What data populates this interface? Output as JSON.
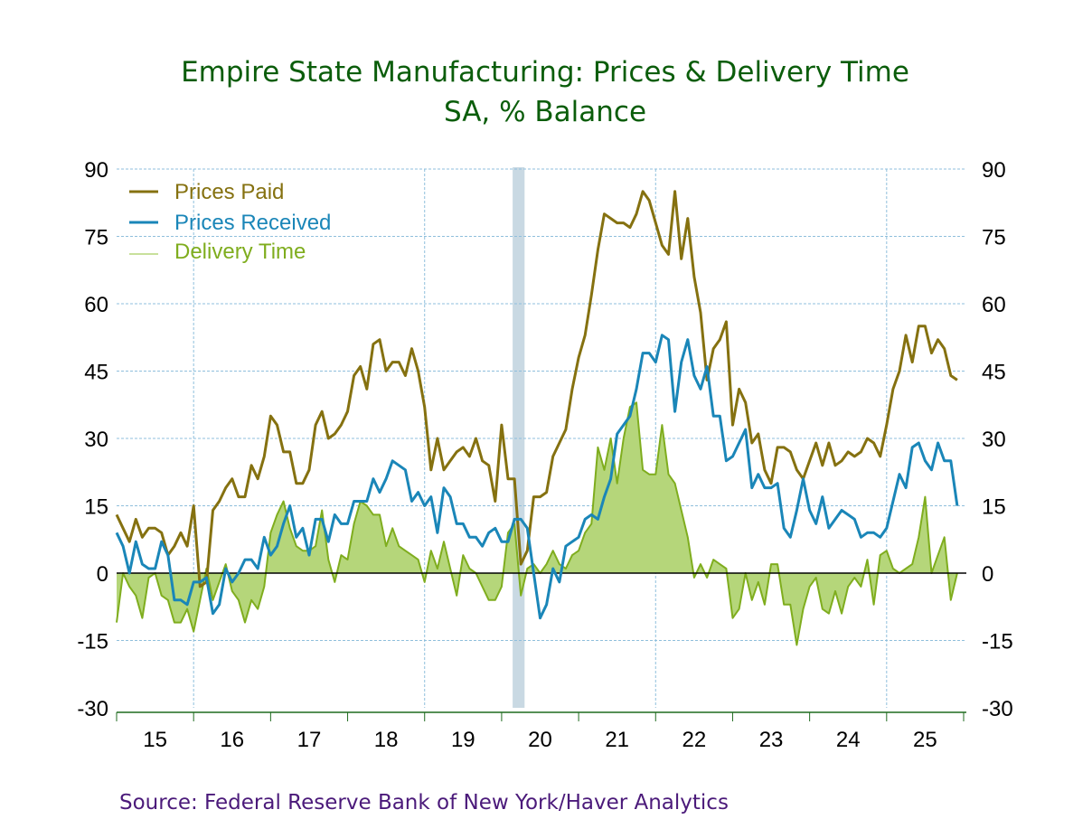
{
  "chart_data": {
    "type": "line",
    "title": "Empire State Manufacturing: Prices & Delivery Time",
    "subtitle": "SA, % Balance",
    "source": "Source:  Federal Reserve Bank of New York/Haver Analytics",
    "xlabel": "",
    "ylabel": "",
    "ylim": [
      -30,
      90
    ],
    "yticks": [
      90,
      75,
      60,
      45,
      30,
      15,
      0,
      -15,
      -30
    ],
    "ytick_labels": [
      "90",
      "75",
      "60",
      "45",
      "30",
      "15",
      "0",
      "-15",
      "-30"
    ],
    "x_start": "2015-01",
    "frequency": "monthly",
    "xlim_years": [
      2015,
      2026
    ],
    "xtick_labels": [
      "15",
      "16",
      "17",
      "18",
      "19",
      "20",
      "21",
      "22",
      "23",
      "24",
      "25"
    ],
    "grid": true,
    "legend_position": "top-left",
    "recession_shading": {
      "start": "2020-03",
      "end": "2020-04",
      "color": "#c9d9e3"
    },
    "series": [
      {
        "name": "Prices Paid",
        "color": "#857110",
        "style": "line",
        "values": [
          13,
          10,
          7,
          12,
          8,
          10,
          10,
          9,
          4,
          6,
          9,
          6,
          15,
          -3,
          -2,
          14,
          16,
          19,
          21,
          17,
          17,
          24,
          21,
          26,
          35,
          33,
          27,
          27,
          20,
          20,
          23,
          33,
          36,
          30,
          31,
          33,
          36,
          44,
          46,
          41,
          51,
          52,
          45,
          47,
          47,
          44,
          50,
          45,
          37,
          23,
          30,
          23,
          25,
          27,
          28,
          26,
          30,
          25,
          24,
          16,
          33,
          21,
          21,
          2,
          5,
          17,
          17,
          18,
          26,
          29,
          32,
          41,
          48,
          53,
          62,
          72,
          80,
          79,
          78,
          78,
          77,
          80,
          85,
          83,
          78,
          73,
          71,
          85,
          70,
          79,
          66,
          58,
          43,
          50,
          52,
          56,
          33,
          41,
          38,
          29,
          31,
          23,
          20,
          28,
          28,
          27,
          23,
          21,
          25,
          29,
          24,
          29,
          24,
          25,
          27,
          26,
          27,
          30,
          29,
          26,
          33,
          41,
          45,
          53,
          47,
          55,
          55,
          49,
          52,
          50,
          44,
          43
        ]
      },
      {
        "name": "Prices Received",
        "color": "#1a86b8",
        "style": "line",
        "values": [
          9,
          6,
          0,
          7,
          2,
          1,
          1,
          7,
          4,
          -6,
          -6,
          -7,
          -2,
          -2,
          -1,
          -9,
          -7,
          1,
          -2,
          0,
          3,
          3,
          1,
          8,
          4,
          6,
          11,
          15,
          8,
          10,
          4,
          12,
          12,
          7,
          13,
          11,
          11,
          16,
          16,
          16,
          21,
          18,
          21,
          25,
          24,
          23,
          16,
          18,
          15,
          17,
          9,
          19,
          17,
          11,
          11,
          8,
          8,
          6,
          9,
          10,
          7,
          7,
          12,
          12,
          10,
          0,
          -10,
          -7,
          1,
          -2,
          6,
          7,
          8,
          12,
          13,
          12,
          17,
          21,
          31,
          33,
          35,
          41,
          49,
          49,
          47,
          53,
          52,
          36,
          47,
          52,
          44,
          41,
          46,
          35,
          35,
          25,
          26,
          29,
          32,
          19,
          22,
          19,
          19,
          20,
          10,
          8,
          14,
          21,
          14,
          11,
          17,
          10,
          12,
          14,
          13,
          12,
          8,
          9,
          9,
          8,
          10,
          16,
          22,
          19,
          28,
          29,
          25,
          23,
          29,
          25,
          25,
          15
        ]
      },
      {
        "name": "Delivery Time",
        "color": "#7fad1e",
        "fill": "#b5d67a",
        "style": "area",
        "values": [
          -11,
          0,
          -3,
          -5,
          -10,
          -1,
          0,
          -5,
          -6,
          -11,
          -11,
          -8,
          -13,
          -6,
          1,
          -6,
          -2,
          2,
          -4,
          -6,
          -11,
          -6,
          -8,
          -3,
          9,
          13,
          16,
          10,
          6,
          5,
          5,
          6,
          14,
          3,
          -2,
          4,
          3,
          11,
          16,
          15,
          13,
          13,
          6,
          10,
          6,
          5,
          4,
          3,
          -2,
          5,
          1,
          7,
          1,
          -5,
          4,
          1,
          0,
          -3,
          -6,
          -6,
          -3,
          9,
          11,
          -5,
          1,
          2,
          0,
          2,
          5,
          2,
          1,
          4,
          5,
          9,
          11,
          28,
          23,
          30,
          20,
          30,
          37,
          38,
          23,
          22,
          22,
          33,
          22,
          20,
          14,
          8,
          -1,
          2,
          -1,
          3,
          2,
          1,
          -10,
          -8,
          0,
          -6,
          -2,
          -7,
          2,
          2,
          -7,
          -7,
          -16,
          -8,
          -3,
          -1,
          -8,
          -9,
          -4,
          -9,
          -3,
          -1,
          -3,
          3,
          -7,
          4,
          5,
          1,
          0,
          1,
          2,
          8,
          17,
          0,
          4,
          8,
          -6,
          0
        ]
      }
    ]
  }
}
